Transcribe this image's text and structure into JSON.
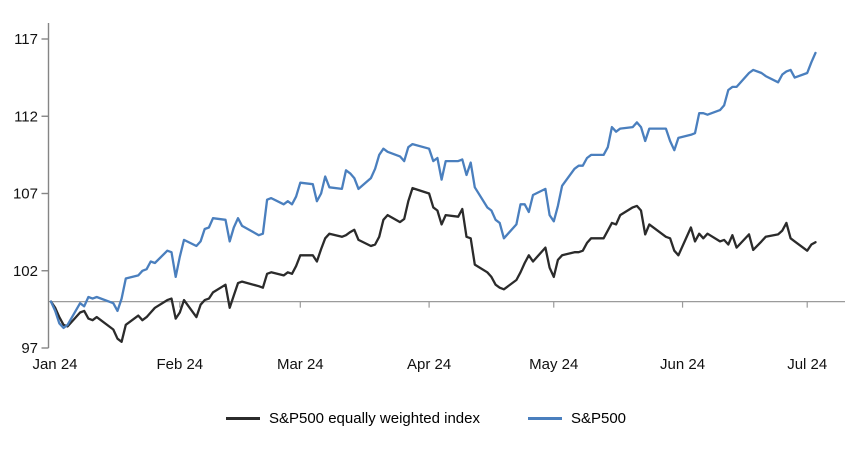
{
  "chart_data": {
    "type": "line",
    "title": "",
    "y_axis": {
      "ticks": [
        97,
        102,
        107,
        112,
        117
      ],
      "min": 97,
      "max": 117,
      "baseline_value": 100
    },
    "x_axis": {
      "tick_labels": [
        "Jan 24",
        "Feb 24",
        "Mar 24",
        "Apr 24",
        "May 24",
        "Jun 24",
        "Jul 24"
      ],
      "tick_day_offsets": [
        0,
        31,
        60,
        91,
        121,
        152,
        182
      ],
      "domain_days": [
        0,
        184
      ]
    },
    "style": {
      "axis_color": "#858585",
      "gridline_color": "#9b9b9b",
      "text_color": "#111111",
      "background": "#ffffff"
    },
    "days": [
      0,
      1,
      2,
      3,
      4,
      7,
      8,
      9,
      10,
      11,
      15,
      16,
      17,
      18,
      21,
      22,
      23,
      24,
      25,
      28,
      29,
      30,
      31,
      32,
      35,
      36,
      37,
      38,
      39,
      42,
      43,
      44,
      45,
      46,
      50,
      51,
      52,
      53,
      56,
      57,
      58,
      59,
      60,
      63,
      64,
      65,
      66,
      67,
      70,
      71,
      72,
      73,
      74,
      77,
      78,
      79,
      80,
      81,
      84,
      85,
      86,
      87,
      91,
      92,
      93,
      94,
      95,
      98,
      99,
      100,
      101,
      102,
      105,
      106,
      107,
      108,
      109,
      112,
      113,
      114,
      115,
      116,
      119,
      120,
      121,
      122,
      123,
      126,
      127,
      128,
      129,
      130,
      133,
      134,
      135,
      136,
      137,
      140,
      141,
      142,
      143,
      144,
      148,
      149,
      150,
      151,
      154,
      155,
      156,
      157,
      158,
      161,
      162,
      163,
      164,
      165,
      168,
      169,
      171,
      172,
      175,
      176,
      177,
      178,
      179,
      182,
      183,
      184
    ],
    "series": [
      {
        "name": "S&P500 equally weighted index",
        "color": "#2b2b2b",
        "values": [
          100.0,
          99.6,
          99.0,
          98.5,
          98.4,
          99.3,
          99.4,
          98.9,
          98.8,
          99.0,
          98.2,
          97.6,
          97.4,
          98.5,
          99.1,
          98.8,
          99.0,
          99.3,
          99.6,
          100.1,
          100.2,
          98.9,
          99.3,
          100.1,
          99.0,
          99.8,
          100.1,
          100.2,
          100.6,
          101.1,
          99.6,
          100.4,
          101.2,
          101.3,
          101.0,
          100.9,
          101.8,
          101.9,
          101.7,
          101.9,
          101.8,
          102.3,
          103.0,
          103.0,
          102.6,
          103.4,
          104.1,
          104.4,
          104.2,
          104.3,
          104.5,
          104.65,
          104.0,
          103.6,
          103.7,
          104.2,
          105.3,
          105.6,
          105.15,
          105.35,
          106.5,
          107.35,
          107.0,
          106.1,
          105.9,
          105.0,
          105.6,
          105.5,
          106.0,
          104.2,
          104.1,
          102.4,
          101.9,
          101.6,
          101.1,
          100.9,
          100.8,
          101.4,
          101.9,
          102.5,
          103.0,
          102.6,
          103.5,
          102.2,
          101.6,
          102.7,
          103.0,
          103.2,
          103.2,
          103.3,
          103.8,
          104.1,
          104.1,
          104.6,
          105.1,
          105.0,
          105.6,
          106.1,
          106.2,
          105.9,
          104.35,
          105.0,
          104.2,
          104.1,
          103.3,
          103.0,
          104.8,
          103.9,
          104.4,
          104.1,
          104.4,
          103.9,
          104.0,
          103.7,
          104.3,
          103.5,
          104.35,
          103.35,
          103.9,
          104.2,
          104.35,
          104.6,
          105.1,
          104.1,
          103.9,
          103.3,
          103.7,
          103.85
        ]
      },
      {
        "name": "S&P500",
        "color": "#4a7fbe",
        "values": [
          100.0,
          99.4,
          98.6,
          98.3,
          98.5,
          99.9,
          99.7,
          100.3,
          100.2,
          100.3,
          99.9,
          99.4,
          100.2,
          101.5,
          101.7,
          102.0,
          102.1,
          102.6,
          102.5,
          103.3,
          103.2,
          101.6,
          102.9,
          104.0,
          103.6,
          103.9,
          104.7,
          104.8,
          105.4,
          105.3,
          103.9,
          104.8,
          105.4,
          104.9,
          104.3,
          104.4,
          106.6,
          106.7,
          106.3,
          106.5,
          106.3,
          106.8,
          107.7,
          107.6,
          106.5,
          107.0,
          108.1,
          107.4,
          107.3,
          108.5,
          108.3,
          108.0,
          107.3,
          108.0,
          108.6,
          109.5,
          109.9,
          109.7,
          109.4,
          109.1,
          110.0,
          110.2,
          109.9,
          109.1,
          109.3,
          107.9,
          109.1,
          109.1,
          109.2,
          108.2,
          109.0,
          107.4,
          106.1,
          105.9,
          105.3,
          105.1,
          104.1,
          105.0,
          106.3,
          106.3,
          105.8,
          106.9,
          107.3,
          105.6,
          105.2,
          106.2,
          107.5,
          108.6,
          108.8,
          108.8,
          109.3,
          109.5,
          109.5,
          110.0,
          111.3,
          111.0,
          111.2,
          111.3,
          111.6,
          111.3,
          110.4,
          111.2,
          111.2,
          110.4,
          109.8,
          110.6,
          110.8,
          110.9,
          112.2,
          112.2,
          112.1,
          112.4,
          112.7,
          113.7,
          113.9,
          113.9,
          114.8,
          115.0,
          114.8,
          114.6,
          114.2,
          114.7,
          114.9,
          115.0,
          114.5,
          114.8,
          115.5,
          116.1
        ]
      }
    ],
    "legend_position": "bottom-center",
    "grid": "baseline-only"
  }
}
